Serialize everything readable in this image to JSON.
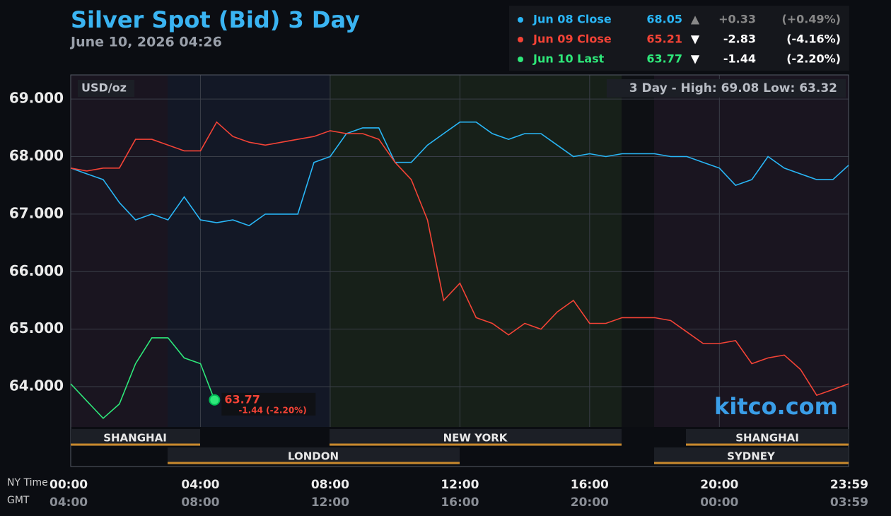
{
  "chart_data": {
    "type": "line",
    "title": "Silver Spot (Bid) 3 Day",
    "subtitle": "June 10, 2026 04:26",
    "unit_label": "USD/oz",
    "range_note": "3 Day - High: 69.08  Low: 63.32",
    "watermark": "kitco.com",
    "x_axis_label": "NY Time",
    "x2_axis_label": "GMT",
    "grid": true,
    "xlim": [
      "00:00",
      "23:59"
    ],
    "xticks": [
      "00:00",
      "04:00",
      "08:00",
      "12:00",
      "16:00",
      "20:00",
      "23:59"
    ],
    "x2ticks": [
      "04:00",
      "08:00",
      "12:00",
      "16:00",
      "20:00",
      "00:00",
      "03:59"
    ],
    "ylim": [
      63.3,
      69.42
    ],
    "yticks": [
      {
        "value": 64,
        "label": "64.000"
      },
      {
        "value": 65,
        "label": "65.000"
      },
      {
        "value": 66,
        "label": "66.000"
      },
      {
        "value": 67,
        "label": "67.000"
      },
      {
        "value": 68,
        "label": "68.000"
      },
      {
        "value": 69,
        "label": "69.000"
      }
    ],
    "x": [
      "00:00",
      "00:30",
      "01:00",
      "01:30",
      "02:00",
      "02:30",
      "03:00",
      "03:30",
      "04:00",
      "04:30",
      "05:00",
      "05:30",
      "06:00",
      "06:30",
      "07:00",
      "07:30",
      "08:00",
      "08:30",
      "09:00",
      "09:30",
      "10:00",
      "10:30",
      "11:00",
      "11:30",
      "12:00",
      "12:30",
      "13:00",
      "13:30",
      "14:00",
      "14:30",
      "15:00",
      "15:30",
      "16:00",
      "16:30",
      "17:00",
      "17:30",
      "18:00",
      "18:30",
      "19:00",
      "19:30",
      "20:00",
      "20:30",
      "21:00",
      "21:30",
      "22:00",
      "22:30",
      "23:00",
      "23:30",
      "23:59"
    ],
    "series": [
      {
        "name": "Jun 08 Close",
        "color": "#29b6f6",
        "last": 68.05,
        "arrow": "▲",
        "change": "+0.33",
        "change_pct": "(+0.49%)",
        "values": [
          67.8,
          67.7,
          67.6,
          67.2,
          66.9,
          67.0,
          66.9,
          67.3,
          66.9,
          66.85,
          66.9,
          66.8,
          67.0,
          67.0,
          67.0,
          67.9,
          68.0,
          68.4,
          68.5,
          68.5,
          67.9,
          67.9,
          68.2,
          68.4,
          68.6,
          68.6,
          68.4,
          68.3,
          68.4,
          68.4,
          68.2,
          68.0,
          68.05,
          68.0,
          68.05,
          68.05,
          68.05,
          68.0,
          68.0,
          67.9,
          67.8,
          67.5,
          67.6,
          68.0,
          67.8,
          67.7,
          67.6,
          67.6,
          67.85
        ]
      },
      {
        "name": "Jun 09 Close",
        "color": "#f44336",
        "last": 65.21,
        "arrow": "▼",
        "change": "-2.83",
        "change_pct": "(-4.16%)",
        "values": [
          67.8,
          67.75,
          67.8,
          67.8,
          68.3,
          68.3,
          68.2,
          68.1,
          68.1,
          68.6,
          68.35,
          68.25,
          68.2,
          68.25,
          68.3,
          68.35,
          68.45,
          68.4,
          68.4,
          68.3,
          67.9,
          67.6,
          66.9,
          65.5,
          65.8,
          65.2,
          65.1,
          64.9,
          65.1,
          65.0,
          65.3,
          65.5,
          65.1,
          65.1,
          65.2,
          65.2,
          65.2,
          65.15,
          64.95,
          64.75,
          64.75,
          64.8,
          64.4,
          64.5,
          64.55,
          64.3,
          63.85,
          63.95,
          64.05
        ]
      },
      {
        "name": "Jun 10 Last",
        "color": "#2ee87a",
        "last": 63.77,
        "arrow": "▼",
        "change": "-1.44",
        "change_pct": "(-2.20%)",
        "x": [
          "00:00",
          "00:30",
          "01:00",
          "01:30",
          "02:00",
          "02:30",
          "03:00",
          "03:30",
          "04:00",
          "04:26"
        ],
        "values": [
          64.05,
          63.75,
          63.45,
          63.7,
          64.4,
          64.85,
          64.85,
          64.5,
          64.4,
          63.77
        ]
      }
    ],
    "last_label": {
      "value": 63.77,
      "change": "-1.44 (-2.20%)"
    },
    "sessions": [
      {
        "label": "SHANGHAI"
      },
      {
        "label": "NEW YORK"
      },
      {
        "label": "SHANGHAI"
      },
      {
        "label": "LONDON"
      },
      {
        "label": "SYDNEY"
      }
    ]
  }
}
